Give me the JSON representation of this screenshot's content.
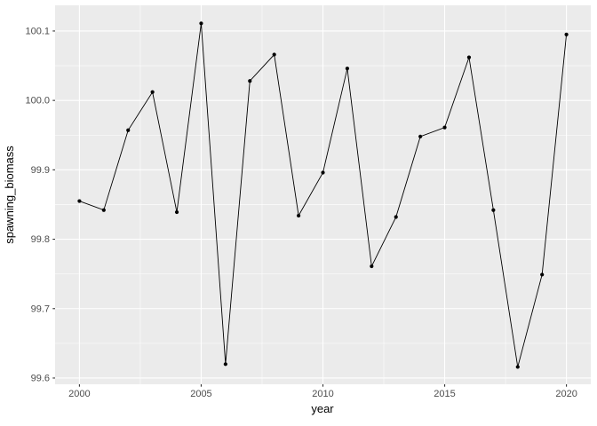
{
  "chart_data": {
    "type": "line",
    "title": "",
    "xlabel": "year",
    "ylabel": "spawning_biomass",
    "x": [
      2000,
      2001,
      2002,
      2003,
      2004,
      2005,
      2006,
      2007,
      2008,
      2009,
      2010,
      2011,
      2012,
      2013,
      2014,
      2015,
      2016,
      2017,
      2018,
      2019,
      2020
    ],
    "series": [
      {
        "name": "spawning_biomass",
        "values": [
          99.855,
          99.842,
          99.957,
          100.012,
          99.839,
          100.111,
          99.62,
          100.028,
          100.066,
          99.834,
          99.896,
          100.046,
          99.761,
          99.832,
          99.948,
          99.961,
          100.062,
          99.842,
          99.616,
          99.749,
          100.095
        ]
      }
    ],
    "xlim": [
      1999,
      2021
    ],
    "ylim": [
      99.591,
      100.137
    ],
    "x_ticks": [
      2000,
      2005,
      2010,
      2015,
      2020
    ],
    "x_tick_labels": [
      "2000",
      "2005",
      "2010",
      "2015",
      "2020"
    ],
    "x_minor_ticks": [
      2002.5,
      2007.5,
      2012.5,
      2017.5
    ],
    "y_ticks": [
      99.6,
      99.7,
      99.8,
      99.9,
      100.0,
      100.1
    ],
    "y_tick_labels": [
      "99.6",
      "99.7",
      "99.8",
      "99.9",
      "100.0",
      "100.1"
    ],
    "y_minor_ticks": [
      99.65,
      99.75,
      99.85,
      99.95,
      100.05
    ],
    "grid": "major+minor",
    "legend_position": "none",
    "marker": "point",
    "style": {
      "panel_bg": "#EBEBEB",
      "grid_color": "#FFFFFF",
      "line_color": "#000000",
      "point_color": "#000000",
      "axis_text_color": "#4D4D4D",
      "axis_title_color": "#000000",
      "tick_color": "#333333",
      "background": "#FFFFFF"
    }
  }
}
